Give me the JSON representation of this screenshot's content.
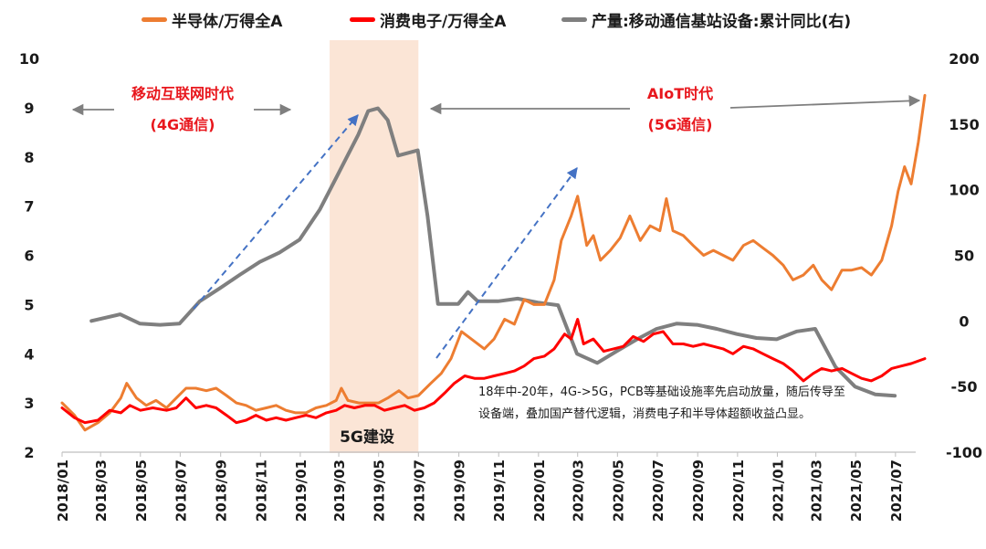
{
  "chart_data": {
    "type": "line",
    "legend": [
      {
        "name": "半导体/万得全A",
        "color": "#ED7D31"
      },
      {
        "name": "消费电子/万得全A",
        "color": "#FF0000"
      },
      {
        "name": "产量:移动通信基站设备:累计同比(右)",
        "color": "#7F7F7F"
      }
    ],
    "y_left": {
      "ticks": [
        "2",
        "3",
        "4",
        "5",
        "6",
        "7",
        "8",
        "9",
        "10"
      ],
      "range": [
        2,
        10
      ]
    },
    "y_right": {
      "ticks": [
        "-100",
        "-50",
        "0",
        "50",
        "100",
        "150",
        "200"
      ],
      "range": [
        -100,
        200
      ]
    },
    "x_ticks": [
      "2018/01",
      "2018/03",
      "2018/05",
      "2018/07",
      "2018/09",
      "2018/11",
      "2019/01",
      "2019/03",
      "2019/05",
      "2019/07",
      "2019/09",
      "2019/11",
      "2020/01",
      "2020/03",
      "2020/05",
      "2020/07",
      "2020/09",
      "2020/11",
      "2021/01",
      "2021/03",
      "2021/05",
      "2021/07"
    ],
    "x_range": [
      "2018/01",
      "2021/08"
    ],
    "shaded_period": {
      "start": "2019/02/15",
      "end": "2019/07/01",
      "label": "5G建设"
    },
    "series": [
      {
        "name": "半导体/万得全A",
        "axis": "left",
        "color": "#ED7D31",
        "points": [
          [
            "2018/01/01",
            3.0
          ],
          [
            "2018/01/20",
            2.75
          ],
          [
            "2018/02/05",
            2.45
          ],
          [
            "2018/02/25",
            2.6
          ],
          [
            "2018/03/15",
            2.8
          ],
          [
            "2018/04/01",
            3.1
          ],
          [
            "2018/04/10",
            3.4
          ],
          [
            "2018/04/25",
            3.1
          ],
          [
            "2018/05/10",
            2.95
          ],
          [
            "2018/05/25",
            3.05
          ],
          [
            "2018/06/10",
            2.9
          ],
          [
            "2018/06/25",
            3.1
          ],
          [
            "2018/07/10",
            3.3
          ],
          [
            "2018/07/25",
            3.3
          ],
          [
            "2018/08/10",
            3.25
          ],
          [
            "2018/08/25",
            3.3
          ],
          [
            "2018/09/10",
            3.15
          ],
          [
            "2018/09/25",
            3.0
          ],
          [
            "2018/10/10",
            2.95
          ],
          [
            "2018/10/25",
            2.85
          ],
          [
            "2018/11/10",
            2.9
          ],
          [
            "2018/11/25",
            2.95
          ],
          [
            "2018/12/10",
            2.85
          ],
          [
            "2018/12/25",
            2.8
          ],
          [
            "2019/01/10",
            2.8
          ],
          [
            "2019/01/25",
            2.9
          ],
          [
            "2019/02/10",
            2.95
          ],
          [
            "2019/02/25",
            3.05
          ],
          [
            "2019/03/05",
            3.3
          ],
          [
            "2019/03/15",
            3.05
          ],
          [
            "2019/04/01",
            3.0
          ],
          [
            "2019/04/15",
            3.0
          ],
          [
            "2019/05/01",
            3.0
          ],
          [
            "2019/05/15",
            3.1
          ],
          [
            "2019/06/01",
            3.25
          ],
          [
            "2019/06/15",
            3.1
          ],
          [
            "2019/07/01",
            3.15
          ],
          [
            "2019/07/20",
            3.4
          ],
          [
            "2019/08/05",
            3.6
          ],
          [
            "2019/08/20",
            3.9
          ],
          [
            "2019/09/05",
            4.45
          ],
          [
            "2019/09/20",
            4.3
          ],
          [
            "2019/10/10",
            4.1
          ],
          [
            "2019/10/25",
            4.3
          ],
          [
            "2019/11/10",
            4.7
          ],
          [
            "2019/11/25",
            4.6
          ],
          [
            "2019/12/10",
            5.1
          ],
          [
            "2019/12/25",
            5.0
          ],
          [
            "2020/01/10",
            5.0
          ],
          [
            "2020/01/25",
            5.5
          ],
          [
            "2020/02/05",
            6.3
          ],
          [
            "2020/02/20",
            6.8
          ],
          [
            "2020/03/01",
            7.2
          ],
          [
            "2020/03/15",
            6.2
          ],
          [
            "2020/03/25",
            6.4
          ],
          [
            "2020/04/05",
            5.9
          ],
          [
            "2020/04/20",
            6.1
          ],
          [
            "2020/05/05",
            6.35
          ],
          [
            "2020/05/20",
            6.8
          ],
          [
            "2020/06/05",
            6.3
          ],
          [
            "2020/06/20",
            6.6
          ],
          [
            "2020/07/05",
            6.5
          ],
          [
            "2020/07/15",
            7.15
          ],
          [
            "2020/07/25",
            6.5
          ],
          [
            "2020/08/10",
            6.4
          ],
          [
            "2020/08/25",
            6.2
          ],
          [
            "2020/09/10",
            6.0
          ],
          [
            "2020/09/25",
            6.1
          ],
          [
            "2020/10/10",
            6.0
          ],
          [
            "2020/10/25",
            5.9
          ],
          [
            "2020/11/10",
            6.2
          ],
          [
            "2020/11/25",
            6.3
          ],
          [
            "2020/12/10",
            6.15
          ],
          [
            "2020/12/25",
            6.0
          ],
          [
            "2021/01/10",
            5.8
          ],
          [
            "2021/01/25",
            5.5
          ],
          [
            "2021/02/10",
            5.6
          ],
          [
            "2021/02/25",
            5.8
          ],
          [
            "2021/03/10",
            5.5
          ],
          [
            "2021/03/25",
            5.3
          ],
          [
            "2021/04/10",
            5.7
          ],
          [
            "2021/04/25",
            5.7
          ],
          [
            "2021/05/10",
            5.75
          ],
          [
            "2021/05/25",
            5.6
          ],
          [
            "2021/06/10",
            5.9
          ],
          [
            "2021/06/25",
            6.6
          ],
          [
            "2021/07/05",
            7.3
          ],
          [
            "2021/07/15",
            7.8
          ],
          [
            "2021/07/25",
            7.45
          ],
          [
            "2021/08/05",
            8.3
          ],
          [
            "2021/08/15",
            9.25
          ]
        ]
      },
      {
        "name": "消费电子/万得全A",
        "axis": "left",
        "color": "#FF0000",
        "points": [
          [
            "2018/01/01",
            2.9
          ],
          [
            "2018/01/20",
            2.7
          ],
          [
            "2018/02/05",
            2.6
          ],
          [
            "2018/02/25",
            2.65
          ],
          [
            "2018/03/15",
            2.85
          ],
          [
            "2018/04/01",
            2.8
          ],
          [
            "2018/04/15",
            2.95
          ],
          [
            "2018/05/01",
            2.85
          ],
          [
            "2018/05/20",
            2.9
          ],
          [
            "2018/06/10",
            2.85
          ],
          [
            "2018/06/25",
            2.9
          ],
          [
            "2018/07/10",
            3.1
          ],
          [
            "2018/07/25",
            2.9
          ],
          [
            "2018/08/10",
            2.95
          ],
          [
            "2018/08/25",
            2.9
          ],
          [
            "2018/09/10",
            2.75
          ],
          [
            "2018/09/25",
            2.6
          ],
          [
            "2018/10/10",
            2.65
          ],
          [
            "2018/10/25",
            2.75
          ],
          [
            "2018/11/10",
            2.65
          ],
          [
            "2018/11/25",
            2.7
          ],
          [
            "2018/12/10",
            2.65
          ],
          [
            "2018/12/25",
            2.7
          ],
          [
            "2019/01/10",
            2.75
          ],
          [
            "2019/01/25",
            2.7
          ],
          [
            "2019/02/10",
            2.8
          ],
          [
            "2019/02/25",
            2.85
          ],
          [
            "2019/03/10",
            2.95
          ],
          [
            "2019/03/25",
            2.9
          ],
          [
            "2019/04/10",
            2.95
          ],
          [
            "2019/04/25",
            2.95
          ],
          [
            "2019/05/10",
            2.85
          ],
          [
            "2019/05/25",
            2.9
          ],
          [
            "2019/06/10",
            2.95
          ],
          [
            "2019/06/25",
            2.85
          ],
          [
            "2019/07/10",
            2.9
          ],
          [
            "2019/07/25",
            3.0
          ],
          [
            "2019/08/10",
            3.2
          ],
          [
            "2019/08/25",
            3.4
          ],
          [
            "2019/09/10",
            3.55
          ],
          [
            "2019/09/25",
            3.5
          ],
          [
            "2019/10/10",
            3.5
          ],
          [
            "2019/10/25",
            3.55
          ],
          [
            "2019/11/10",
            3.6
          ],
          [
            "2019/11/25",
            3.65
          ],
          [
            "2019/12/10",
            3.75
          ],
          [
            "2019/12/25",
            3.9
          ],
          [
            "2020/01/10",
            3.95
          ],
          [
            "2020/01/25",
            4.1
          ],
          [
            "2020/02/10",
            4.4
          ],
          [
            "2020/02/20",
            4.3
          ],
          [
            "2020/03/01",
            4.7
          ],
          [
            "2020/03/10",
            4.2
          ],
          [
            "2020/03/25",
            4.3
          ],
          [
            "2020/04/10",
            4.05
          ],
          [
            "2020/04/25",
            4.1
          ],
          [
            "2020/05/10",
            4.15
          ],
          [
            "2020/05/25",
            4.35
          ],
          [
            "2020/06/10",
            4.25
          ],
          [
            "2020/06/25",
            4.4
          ],
          [
            "2020/07/10",
            4.45
          ],
          [
            "2020/07/25",
            4.2
          ],
          [
            "2020/08/10",
            4.2
          ],
          [
            "2020/08/25",
            4.15
          ],
          [
            "2020/09/10",
            4.2
          ],
          [
            "2020/09/25",
            4.15
          ],
          [
            "2020/10/10",
            4.1
          ],
          [
            "2020/10/25",
            4.0
          ],
          [
            "2020/11/10",
            4.15
          ],
          [
            "2020/11/25",
            4.1
          ],
          [
            "2020/12/10",
            4.0
          ],
          [
            "2020/12/25",
            3.9
          ],
          [
            "2021/01/10",
            3.8
          ],
          [
            "2021/01/25",
            3.65
          ],
          [
            "2021/02/10",
            3.45
          ],
          [
            "2021/02/25",
            3.6
          ],
          [
            "2021/03/10",
            3.7
          ],
          [
            "2021/03/25",
            3.65
          ],
          [
            "2021/04/10",
            3.7
          ],
          [
            "2021/04/25",
            3.6
          ],
          [
            "2021/05/10",
            3.5
          ],
          [
            "2021/05/25",
            3.45
          ],
          [
            "2021/06/10",
            3.55
          ],
          [
            "2021/06/25",
            3.7
          ],
          [
            "2021/07/10",
            3.75
          ],
          [
            "2021/07/25",
            3.8
          ],
          [
            "2021/08/15",
            3.9
          ]
        ]
      },
      {
        "name": "产量:移动通信基站设备:累计同比(右)",
        "axis": "right",
        "color": "#7F7F7F",
        "points": [
          [
            "2018/02/15",
            0
          ],
          [
            "2018/03/31",
            5
          ],
          [
            "2018/04/30",
            -2
          ],
          [
            "2018/05/31",
            -3
          ],
          [
            "2018/06/30",
            -2
          ],
          [
            "2018/07/31",
            15
          ],
          [
            "2018/08/31",
            25
          ],
          [
            "2018/09/30",
            35
          ],
          [
            "2018/10/31",
            45
          ],
          [
            "2018/11/30",
            52
          ],
          [
            "2018/12/31",
            62
          ],
          [
            "2019/01/31",
            85
          ],
          [
            "2019/02/28",
            112
          ],
          [
            "2019/03/31",
            142
          ],
          [
            "2019/04/15",
            160
          ],
          [
            "2019/04/30",
            162
          ],
          [
            "2019/05/15",
            153
          ],
          [
            "2019/05/31",
            126
          ],
          [
            "2019/06/30",
            130
          ],
          [
            "2019/07/15",
            80
          ],
          [
            "2019/07/31",
            13
          ],
          [
            "2019/08/31",
            13
          ],
          [
            "2019/09/15",
            22
          ],
          [
            "2019/09/30",
            15
          ],
          [
            "2019/10/31",
            15
          ],
          [
            "2019/11/30",
            17
          ],
          [
            "2019/12/31",
            14
          ],
          [
            "2020/01/31",
            12
          ],
          [
            "2020/02/29",
            -25
          ],
          [
            "2020/03/31",
            -32
          ],
          [
            "2020/04/30",
            -23
          ],
          [
            "2020/05/31",
            -14
          ],
          [
            "2020/06/30",
            -6
          ],
          [
            "2020/07/31",
            -2
          ],
          [
            "2020/08/31",
            -3
          ],
          [
            "2020/09/30",
            -6
          ],
          [
            "2020/10/31",
            -10
          ],
          [
            "2020/11/30",
            -13
          ],
          [
            "2020/12/31",
            -14
          ],
          [
            "2021/01/31",
            -8
          ],
          [
            "2021/02/28",
            -6
          ],
          [
            "2021/03/15",
            -20
          ],
          [
            "2021/03/31",
            -35
          ],
          [
            "2021/04/30",
            -50
          ],
          [
            "2021/05/31",
            -56
          ],
          [
            "2021/06/30",
            -57
          ]
        ]
      }
    ],
    "annotations": {
      "left_era_title": "移动互联网时代",
      "left_era_sub": "(4G通信)",
      "right_era_title": "AIoT时代",
      "right_era_sub": "(5G通信)",
      "shade_label": "5G建设",
      "note": "18年中-20年，4G->5G，PCB等基础设施率先启动放量，随后传导至设备端，叠加国产替代逻辑，消费电子和半导体超额收益凸显。"
    }
  }
}
